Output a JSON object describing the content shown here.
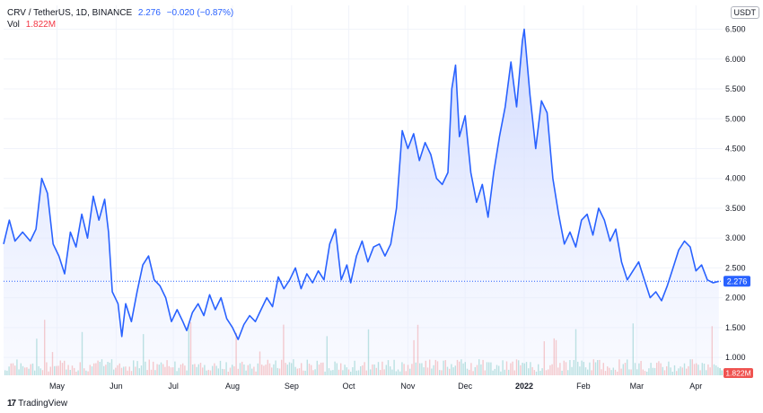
{
  "header": {
    "symbol": "CRV / TetherUS, 1D, BINANCE",
    "last": "2.276",
    "change": "−0.020 (−0.87%)",
    "vol_label": "Vol",
    "vol_value": "1.822M"
  },
  "currency": "USDT",
  "brand": {
    "logo": "17",
    "name": "TradingView"
  },
  "colors": {
    "line": "#2962ff",
    "fill": "#d9e2ff",
    "up": "#26a69a",
    "down": "#ef5350",
    "grid": "#f0f3fa"
  },
  "chart_data": {
    "type": "area",
    "title": "CRV / TetherUS, 1D, BINANCE",
    "ylim": [
      0.7,
      6.9
    ],
    "y_ticks": [
      "6.500",
      "6.000",
      "5.500",
      "5.000",
      "4.500",
      "4.000",
      "3.500",
      "3.000",
      "2.500",
      "2.000",
      "1.500",
      "1.000"
    ],
    "y_tick_values": [
      6.5,
      6.0,
      5.5,
      5.0,
      4.5,
      4.0,
      3.5,
      3.0,
      2.5,
      2.0,
      1.5,
      1.0
    ],
    "x_labels": [
      {
        "label": "May",
        "date": "2021-05-01"
      },
      {
        "label": "Jun",
        "date": "2021-06-01"
      },
      {
        "label": "Jul",
        "date": "2021-07-01"
      },
      {
        "label": "Aug",
        "date": "2021-08-01"
      },
      {
        "label": "Sep",
        "date": "2021-09-01"
      },
      {
        "label": "Oct",
        "date": "2021-10-01"
      },
      {
        "label": "Nov",
        "date": "2021-11-01"
      },
      {
        "label": "Dec",
        "date": "2021-12-01"
      },
      {
        "label": "2022",
        "date": "2022-01-01"
      },
      {
        "label": "Feb",
        "date": "2022-02-01"
      },
      {
        "label": "Mar",
        "date": "2022-03-01"
      },
      {
        "label": "Apr",
        "date": "2022-04-01"
      }
    ],
    "x_range": [
      "2021-04-03",
      "2022-04-15"
    ],
    "last_value": 2.276,
    "last_label": "2.276",
    "volume_label": "1.822M",
    "series": [
      {
        "values": [
          [
            "2021-04-03",
            2.9
          ],
          [
            "2021-04-06",
            3.3
          ],
          [
            "2021-04-09",
            2.95
          ],
          [
            "2021-04-13",
            3.1
          ],
          [
            "2021-04-17",
            2.95
          ],
          [
            "2021-04-20",
            3.15
          ],
          [
            "2021-04-23",
            4.0
          ],
          [
            "2021-04-26",
            3.75
          ],
          [
            "2021-04-29",
            2.9
          ],
          [
            "2021-05-02",
            2.7
          ],
          [
            "2021-05-05",
            2.4
          ],
          [
            "2021-05-08",
            3.1
          ],
          [
            "2021-05-11",
            2.85
          ],
          [
            "2021-05-14",
            3.4
          ],
          [
            "2021-05-17",
            3.0
          ],
          [
            "2021-05-20",
            3.7
          ],
          [
            "2021-05-23",
            3.3
          ],
          [
            "2021-05-26",
            3.65
          ],
          [
            "2021-05-28",
            3.1
          ],
          [
            "2021-05-30",
            2.1
          ],
          [
            "2021-06-02",
            1.9
          ],
          [
            "2021-06-04",
            1.35
          ],
          [
            "2021-06-06",
            1.9
          ],
          [
            "2021-06-09",
            1.6
          ],
          [
            "2021-06-12",
            2.1
          ],
          [
            "2021-06-15",
            2.55
          ],
          [
            "2021-06-18",
            2.7
          ],
          [
            "2021-06-21",
            2.3
          ],
          [
            "2021-06-24",
            2.2
          ],
          [
            "2021-06-27",
            2.0
          ],
          [
            "2021-06-30",
            1.6
          ],
          [
            "2021-07-03",
            1.8
          ],
          [
            "2021-07-06",
            1.6
          ],
          [
            "2021-07-08",
            1.45
          ],
          [
            "2021-07-11",
            1.75
          ],
          [
            "2021-07-14",
            1.9
          ],
          [
            "2021-07-17",
            1.7
          ],
          [
            "2021-07-20",
            2.05
          ],
          [
            "2021-07-23",
            1.8
          ],
          [
            "2021-07-26",
            2.0
          ],
          [
            "2021-07-29",
            1.65
          ],
          [
            "2021-08-01",
            1.5
          ],
          [
            "2021-08-04",
            1.3
          ],
          [
            "2021-08-07",
            1.55
          ],
          [
            "2021-08-10",
            1.7
          ],
          [
            "2021-08-13",
            1.6
          ],
          [
            "2021-08-16",
            1.8
          ],
          [
            "2021-08-19",
            2.0
          ],
          [
            "2021-08-22",
            1.85
          ],
          [
            "2021-08-25",
            2.35
          ],
          [
            "2021-08-28",
            2.15
          ],
          [
            "2021-08-31",
            2.3
          ],
          [
            "2021-09-03",
            2.5
          ],
          [
            "2021-09-06",
            2.15
          ],
          [
            "2021-09-09",
            2.4
          ],
          [
            "2021-09-12",
            2.25
          ],
          [
            "2021-09-15",
            2.45
          ],
          [
            "2021-09-18",
            2.3
          ],
          [
            "2021-09-21",
            2.9
          ],
          [
            "2021-09-24",
            3.15
          ],
          [
            "2021-09-27",
            2.3
          ],
          [
            "2021-09-30",
            2.55
          ],
          [
            "2021-10-02",
            2.25
          ],
          [
            "2021-10-05",
            2.7
          ],
          [
            "2021-10-08",
            2.95
          ],
          [
            "2021-10-11",
            2.6
          ],
          [
            "2021-10-14",
            2.85
          ],
          [
            "2021-10-17",
            2.9
          ],
          [
            "2021-10-20",
            2.7
          ],
          [
            "2021-10-23",
            2.9
          ],
          [
            "2021-10-26",
            3.5
          ],
          [
            "2021-10-29",
            4.8
          ],
          [
            "2021-11-01",
            4.5
          ],
          [
            "2021-11-04",
            4.75
          ],
          [
            "2021-11-07",
            4.3
          ],
          [
            "2021-11-10",
            4.6
          ],
          [
            "2021-11-13",
            4.4
          ],
          [
            "2021-11-16",
            4.0
          ],
          [
            "2021-11-19",
            3.9
          ],
          [
            "2021-11-22",
            4.1
          ],
          [
            "2021-11-24",
            5.5
          ],
          [
            "2021-11-26",
            5.9
          ],
          [
            "2021-11-28",
            4.7
          ],
          [
            "2021-12-01",
            5.05
          ],
          [
            "2021-12-04",
            4.1
          ],
          [
            "2021-12-07",
            3.6
          ],
          [
            "2021-12-10",
            3.9
          ],
          [
            "2021-12-13",
            3.35
          ],
          [
            "2021-12-16",
            4.1
          ],
          [
            "2021-12-19",
            4.7
          ],
          [
            "2021-12-22",
            5.2
          ],
          [
            "2021-12-25",
            5.95
          ],
          [
            "2021-12-28",
            5.2
          ],
          [
            "2021-12-31",
            6.3
          ],
          [
            "2022-01-01",
            6.5
          ],
          [
            "2022-01-04",
            5.4
          ],
          [
            "2022-01-07",
            4.5
          ],
          [
            "2022-01-10",
            5.3
          ],
          [
            "2022-01-13",
            5.1
          ],
          [
            "2022-01-16",
            4.0
          ],
          [
            "2022-01-19",
            3.4
          ],
          [
            "2022-01-22",
            2.9
          ],
          [
            "2022-01-25",
            3.1
          ],
          [
            "2022-01-28",
            2.85
          ],
          [
            "2022-01-31",
            3.3
          ],
          [
            "2022-02-03",
            3.4
          ],
          [
            "2022-02-06",
            3.05
          ],
          [
            "2022-02-09",
            3.5
          ],
          [
            "2022-02-12",
            3.3
          ],
          [
            "2022-02-15",
            2.95
          ],
          [
            "2022-02-18",
            3.15
          ],
          [
            "2022-02-21",
            2.6
          ],
          [
            "2022-02-24",
            2.3
          ],
          [
            "2022-02-27",
            2.45
          ],
          [
            "2022-03-02",
            2.6
          ],
          [
            "2022-03-05",
            2.3
          ],
          [
            "2022-03-08",
            2.0
          ],
          [
            "2022-03-11",
            2.1
          ],
          [
            "2022-03-14",
            1.95
          ],
          [
            "2022-03-17",
            2.2
          ],
          [
            "2022-03-20",
            2.5
          ],
          [
            "2022-03-23",
            2.8
          ],
          [
            "2022-03-26",
            2.95
          ],
          [
            "2022-03-29",
            2.85
          ],
          [
            "2022-04-01",
            2.45
          ],
          [
            "2022-04-04",
            2.55
          ],
          [
            "2022-04-07",
            2.3
          ],
          [
            "2022-04-10",
            2.25
          ],
          [
            "2022-04-13",
            2.276
          ]
        ]
      }
    ]
  }
}
